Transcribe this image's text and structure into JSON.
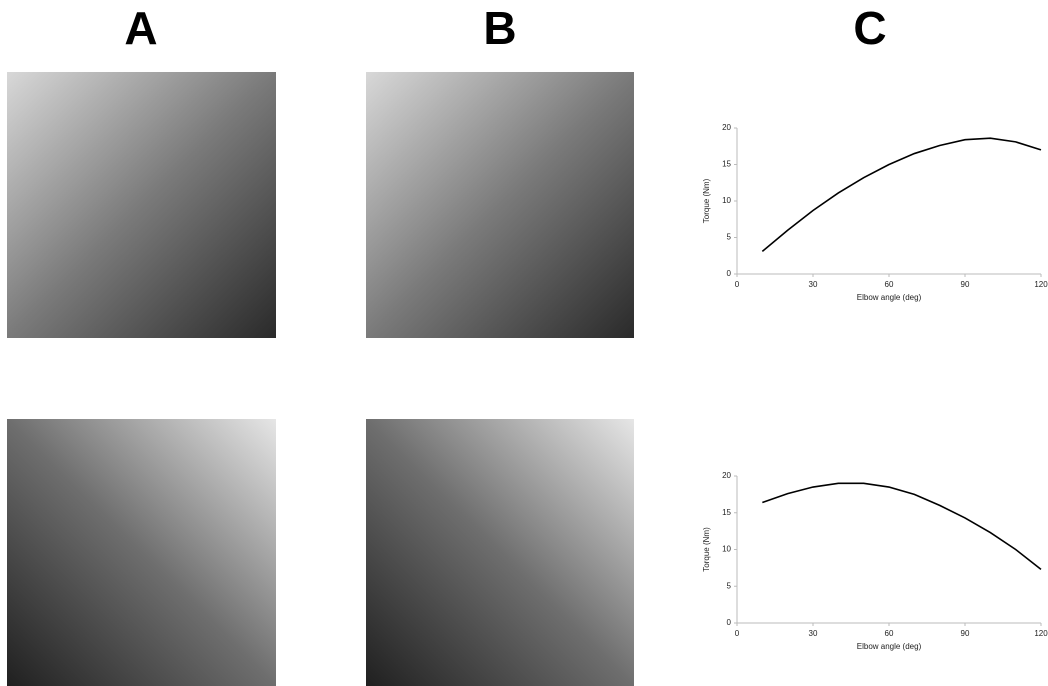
{
  "panel_labels": [
    "A",
    "B",
    "C"
  ],
  "chart_data": [
    {
      "type": "line",
      "x": [
        10,
        20,
        30,
        40,
        50,
        60,
        70,
        80,
        90,
        100,
        110,
        120
      ],
      "values": [
        3.1,
        6.0,
        8.7,
        11.1,
        13.2,
        15.0,
        16.5,
        17.6,
        18.4,
        18.6,
        18.1,
        17.0
      ],
      "color": "#000000",
      "xlabel": "Elbow angle (deg)",
      "ylabel": "Torque (Nm)",
      "xlim": [
        0,
        120
      ],
      "ylim": [
        0,
        20
      ],
      "xticks": [
        0,
        30,
        60,
        90,
        120
      ],
      "yticks": [
        0,
        5,
        10,
        15,
        20
      ]
    },
    {
      "type": "line",
      "x": [
        10,
        20,
        30,
        40,
        50,
        60,
        70,
        80,
        90,
        100,
        110,
        120
      ],
      "values": [
        16.4,
        17.6,
        18.5,
        19.0,
        19.0,
        18.5,
        17.5,
        16.0,
        14.3,
        12.3,
        10.0,
        7.3
      ],
      "color": "#000000",
      "xlabel": "Elbow angle (deg)",
      "ylabel": "Torque (Nm)",
      "xlim": [
        0,
        120
      ],
      "ylim": [
        0,
        20
      ],
      "xticks": [
        0,
        30,
        60,
        90,
        120
      ],
      "yticks": [
        0,
        5,
        10,
        15,
        20
      ]
    }
  ]
}
